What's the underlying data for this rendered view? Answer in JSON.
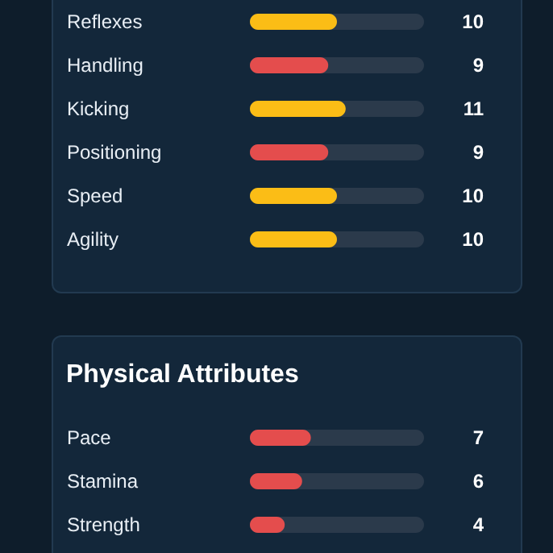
{
  "chart_data": [
    {
      "type": "bar",
      "orientation": "horizontal",
      "categories": [
        "Reflexes",
        "Handling",
        "Kicking",
        "Positioning",
        "Speed",
        "Agility"
      ],
      "values": [
        10,
        9,
        11,
        9,
        10,
        10
      ],
      "colors": [
        "#fbbd16",
        "#e44d4d",
        "#fbbd16",
        "#e44d4d",
        "#fbbd16",
        "#fbbd16"
      ],
      "xlim": [
        0,
        20
      ],
      "data_labels": true,
      "tick_labels": "y"
    },
    {
      "type": "bar",
      "orientation": "horizontal",
      "title": "Physical Attributes",
      "categories": [
        "Pace",
        "Stamina",
        "Strength"
      ],
      "values": [
        7,
        6,
        4
      ],
      "colors": [
        "#e44d4d",
        "#e44d4d",
        "#e44d4d"
      ],
      "xlim": [
        0,
        20
      ],
      "data_labels": true,
      "tick_labels": "y"
    }
  ]
}
